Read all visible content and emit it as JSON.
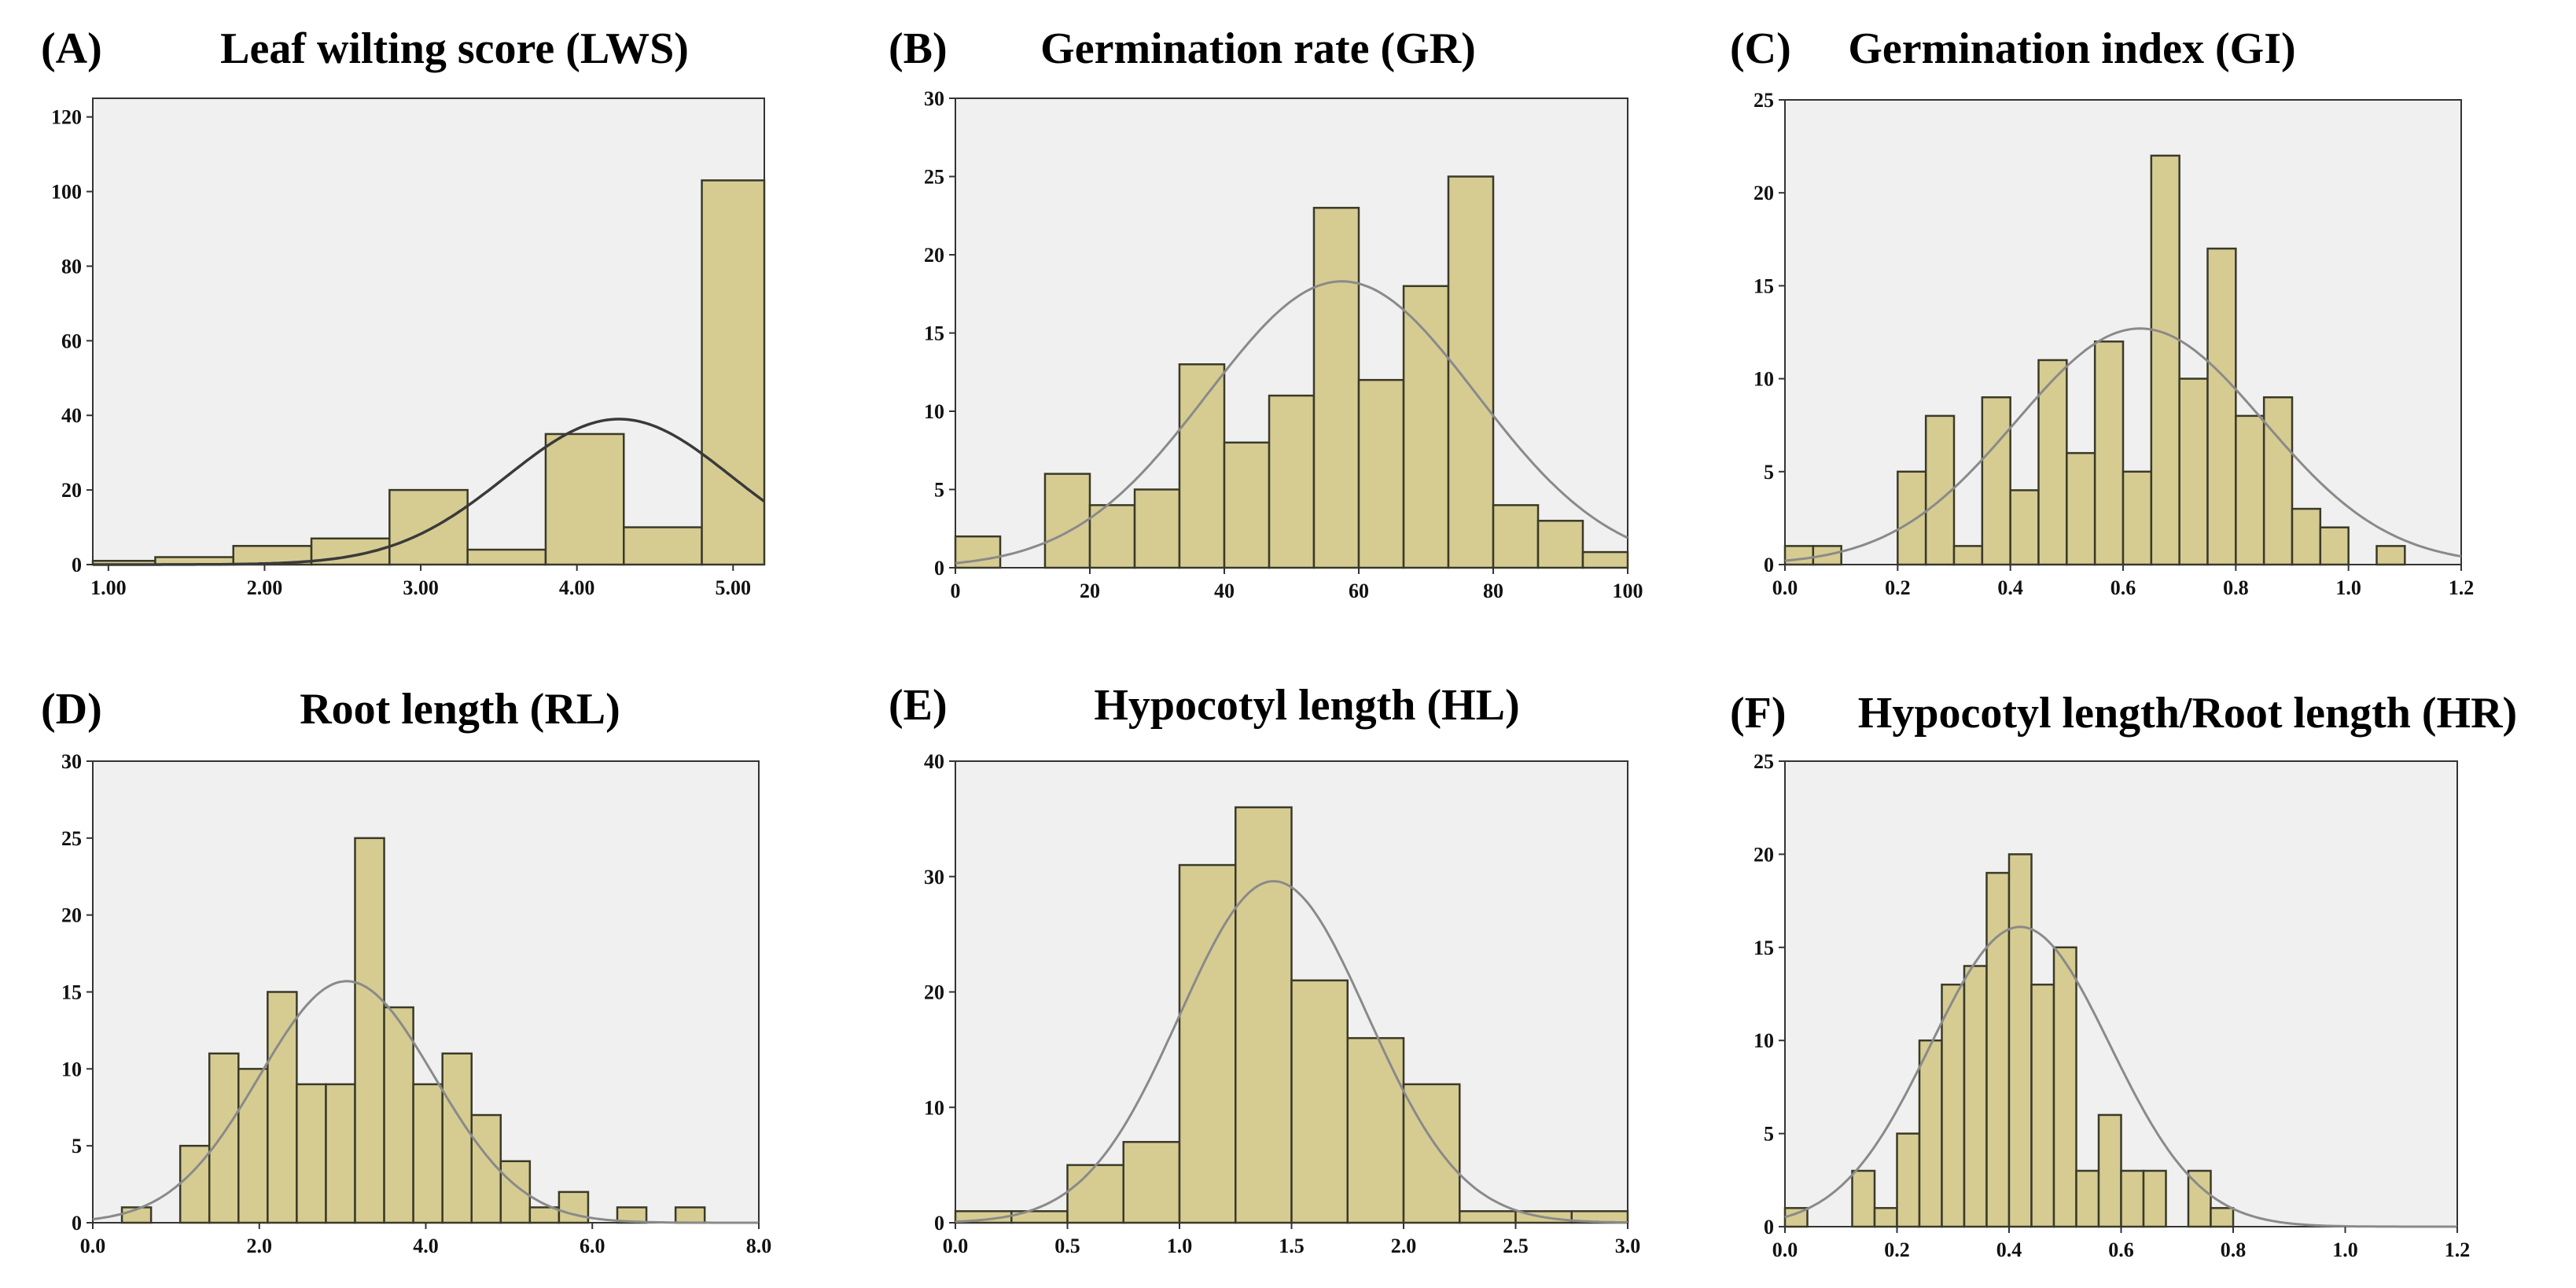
{
  "chart_data": [
    {
      "type": "bar",
      "panel": "(A)",
      "title": "Leaf wilting score (LWS)",
      "xlabel": "",
      "ylabel": "",
      "xlim": [
        0.9,
        5.2
      ],
      "ylim": [
        0,
        125
      ],
      "xticks": [
        1.0,
        2.0,
        3.0,
        4.0,
        5.0
      ],
      "xtick_labels": [
        "1.00",
        "2.00",
        "3.00",
        "4.00",
        "5.00"
      ],
      "yticks": [
        0,
        20,
        40,
        60,
        80,
        100,
        120
      ],
      "ytick_labels": [
        "0",
        "20",
        "40",
        "60",
        "80",
        "100",
        "120"
      ],
      "bins": [
        {
          "x0": 0.9,
          "x1": 1.3,
          "value": 1
        },
        {
          "x0": 1.3,
          "x1": 1.8,
          "value": 2
        },
        {
          "x0": 1.8,
          "x1": 2.3,
          "value": 5
        },
        {
          "x0": 2.3,
          "x1": 2.8,
          "value": 7
        },
        {
          "x0": 2.8,
          "x1": 3.3,
          "value": 20
        },
        {
          "x0": 3.3,
          "x1": 3.8,
          "value": 4
        },
        {
          "x0": 3.8,
          "x1": 4.3,
          "value": 35
        },
        {
          "x0": 4.3,
          "x1": 4.8,
          "value": 10
        },
        {
          "x0": 4.8,
          "x1": 5.2,
          "value": 103
        }
      ],
      "normal_curve": {
        "mean": 4.27,
        "sd": 0.72,
        "peak": 39
      }
    },
    {
      "type": "bar",
      "panel": "(B)",
      "title": "Germination rate (GR)",
      "xlabel": "",
      "ylabel": "",
      "xlim": [
        0,
        100
      ],
      "ylim": [
        0,
        30
      ],
      "xticks": [
        0,
        20,
        40,
        60,
        80,
        100
      ],
      "xtick_labels": [
        "0",
        "20",
        "40",
        "60",
        "80",
        "100"
      ],
      "yticks": [
        0,
        5,
        10,
        15,
        20,
        25,
        30
      ],
      "ytick_labels": [
        "0",
        "5",
        "10",
        "15",
        "20",
        "25",
        "30"
      ],
      "bins": [
        {
          "x0": 0,
          "x1": 6.67,
          "value": 2
        },
        {
          "x0": 13.33,
          "x1": 20,
          "value": 6
        },
        {
          "x0": 20,
          "x1": 26.67,
          "value": 4
        },
        {
          "x0": 26.67,
          "x1": 33.33,
          "value": 5
        },
        {
          "x0": 33.33,
          "x1": 40,
          "value": 13
        },
        {
          "x0": 40,
          "x1": 46.67,
          "value": 8
        },
        {
          "x0": 46.67,
          "x1": 53.33,
          "value": 11
        },
        {
          "x0": 53.33,
          "x1": 60,
          "value": 23
        },
        {
          "x0": 60,
          "x1": 66.67,
          "value": 12
        },
        {
          "x0": 66.67,
          "x1": 73.33,
          "value": 18
        },
        {
          "x0": 73.33,
          "x1": 80,
          "value": 25
        },
        {
          "x0": 80,
          "x1": 86.67,
          "value": 4
        },
        {
          "x0": 86.67,
          "x1": 93.33,
          "value": 3
        },
        {
          "x0": 93.33,
          "x1": 100,
          "value": 1
        }
      ],
      "normal_curve": {
        "mean": 57.5,
        "sd": 20,
        "peak": 18.3
      }
    },
    {
      "type": "bar",
      "panel": "(C)",
      "title": "Germination index (GI)",
      "xlabel": "",
      "ylabel": "",
      "xlim": [
        0,
        1.2
      ],
      "ylim": [
        0,
        25
      ],
      "xticks": [
        0.0,
        0.2,
        0.4,
        0.6,
        0.8,
        1.0,
        1.2
      ],
      "xtick_labels": [
        "0.0",
        "0.2",
        "0.4",
        "0.6",
        "0.8",
        "1.0",
        "1.2"
      ],
      "yticks": [
        0,
        5,
        10,
        15,
        20,
        25
      ],
      "ytick_labels": [
        "0",
        "5",
        "10",
        "15",
        "20",
        "25"
      ],
      "bins": [
        {
          "x0": 0.0,
          "x1": 0.05,
          "value": 1
        },
        {
          "x0": 0.05,
          "x1": 0.1,
          "value": 1
        },
        {
          "x0": 0.2,
          "x1": 0.25,
          "value": 5
        },
        {
          "x0": 0.25,
          "x1": 0.3,
          "value": 8
        },
        {
          "x0": 0.3,
          "x1": 0.35,
          "value": 1
        },
        {
          "x0": 0.35,
          "x1": 0.4,
          "value": 9
        },
        {
          "x0": 0.4,
          "x1": 0.45,
          "value": 4
        },
        {
          "x0": 0.45,
          "x1": 0.5,
          "value": 11
        },
        {
          "x0": 0.5,
          "x1": 0.55,
          "value": 6
        },
        {
          "x0": 0.55,
          "x1": 0.6,
          "value": 12
        },
        {
          "x0": 0.6,
          "x1": 0.65,
          "value": 5
        },
        {
          "x0": 0.65,
          "x1": 0.7,
          "value": 22
        },
        {
          "x0": 0.7,
          "x1": 0.75,
          "value": 10
        },
        {
          "x0": 0.75,
          "x1": 0.8,
          "value": 17
        },
        {
          "x0": 0.8,
          "x1": 0.85,
          "value": 8
        },
        {
          "x0": 0.85,
          "x1": 0.9,
          "value": 9
        },
        {
          "x0": 0.9,
          "x1": 0.95,
          "value": 3
        },
        {
          "x0": 0.95,
          "x1": 1.0,
          "value": 2
        },
        {
          "x0": 1.05,
          "x1": 1.1,
          "value": 1
        }
      ],
      "normal_curve": {
        "mean": 0.63,
        "sd": 0.22,
        "peak": 12.7
      }
    },
    {
      "type": "bar",
      "panel": "(D)",
      "title": "Root length (RL)",
      "xlabel": "",
      "ylabel": "",
      "xlim": [
        0,
        8
      ],
      "ylim": [
        0,
        30
      ],
      "xticks": [
        0,
        2,
        4,
        6,
        8
      ],
      "xtick_labels": [
        "0.0",
        "2.0",
        "4.0",
        "6.0",
        "8.0"
      ],
      "yticks": [
        0,
        5,
        10,
        15,
        20,
        25,
        30
      ],
      "ytick_labels": [
        "0",
        "5",
        "10",
        "15",
        "20",
        "25",
        "30"
      ],
      "bins": [
        {
          "x0": 0.35,
          "x1": 0.7,
          "value": 1
        },
        {
          "x0": 1.05,
          "x1": 1.4,
          "value": 5
        },
        {
          "x0": 1.4,
          "x1": 1.75,
          "value": 11
        },
        {
          "x0": 1.75,
          "x1": 2.1,
          "value": 10
        },
        {
          "x0": 2.1,
          "x1": 2.45,
          "value": 15
        },
        {
          "x0": 2.45,
          "x1": 2.8,
          "value": 9
        },
        {
          "x0": 2.8,
          "x1": 3.15,
          "value": 9
        },
        {
          "x0": 3.15,
          "x1": 3.5,
          "value": 25
        },
        {
          "x0": 3.5,
          "x1": 3.85,
          "value": 14
        },
        {
          "x0": 3.85,
          "x1": 4.2,
          "value": 9
        },
        {
          "x0": 4.2,
          "x1": 4.55,
          "value": 11
        },
        {
          "x0": 4.55,
          "x1": 4.9,
          "value": 7
        },
        {
          "x0": 4.9,
          "x1": 5.25,
          "value": 4
        },
        {
          "x0": 5.25,
          "x1": 5.6,
          "value": 1
        },
        {
          "x0": 5.6,
          "x1": 5.95,
          "value": 2
        },
        {
          "x0": 6.3,
          "x1": 6.65,
          "value": 1
        },
        {
          "x0": 7.0,
          "x1": 7.35,
          "value": 1
        }
      ],
      "normal_curve": {
        "mean": 3.05,
        "sd": 1.05,
        "peak": 15.7
      }
    },
    {
      "type": "bar",
      "panel": "(E)",
      "title": "Hypocotyl length (HL)",
      "xlabel": "",
      "ylabel": "",
      "xlim": [
        0,
        3
      ],
      "ylim": [
        0,
        40
      ],
      "xticks": [
        0.0,
        0.5,
        1.0,
        1.5,
        2.0,
        2.5,
        3.0
      ],
      "xtick_labels": [
        "0.0",
        "0.5",
        "1.0",
        "1.5",
        "2.0",
        "2.5",
        "3.0"
      ],
      "yticks": [
        0,
        10,
        20,
        30,
        40
      ],
      "ytick_labels": [
        "0",
        "10",
        "20",
        "30",
        "40"
      ],
      "bins": [
        {
          "x0": 0.0,
          "x1": 0.25,
          "value": 1
        },
        {
          "x0": 0.25,
          "x1": 0.5,
          "value": 1
        },
        {
          "x0": 0.5,
          "x1": 0.75,
          "value": 5
        },
        {
          "x0": 0.75,
          "x1": 1.0,
          "value": 7
        },
        {
          "x0": 1.0,
          "x1": 1.25,
          "value": 31
        },
        {
          "x0": 1.25,
          "x1": 1.5,
          "value": 36
        },
        {
          "x0": 1.5,
          "x1": 1.75,
          "value": 21
        },
        {
          "x0": 1.75,
          "x1": 2.0,
          "value": 16
        },
        {
          "x0": 2.0,
          "x1": 2.25,
          "value": 12
        },
        {
          "x0": 2.25,
          "x1": 2.5,
          "value": 1
        },
        {
          "x0": 2.5,
          "x1": 2.75,
          "value": 1
        },
        {
          "x0": 2.75,
          "x1": 3.0,
          "value": 1
        }
      ],
      "normal_curve": {
        "mean": 1.42,
        "sd": 0.42,
        "peak": 29.6
      }
    },
    {
      "type": "bar",
      "panel": "(F)",
      "title": "Hypocotyl length/Root length (HR)",
      "xlabel": "",
      "ylabel": "",
      "xlim": [
        0,
        1.2
      ],
      "ylim": [
        0,
        25
      ],
      "xticks": [
        0.0,
        0.2,
        0.4,
        0.6,
        0.8,
        1.0,
        1.2
      ],
      "xtick_labels": [
        "0.0",
        "0.2",
        "0.4",
        "0.6",
        "0.8",
        "1.0",
        "1.2"
      ],
      "yticks": [
        0,
        5,
        10,
        15,
        20,
        25
      ],
      "ytick_labels": [
        "0",
        "5",
        "10",
        "15",
        "20",
        "25"
      ],
      "bins": [
        {
          "x0": 0.0,
          "x1": 0.04,
          "value": 1
        },
        {
          "x0": 0.12,
          "x1": 0.16,
          "value": 3
        },
        {
          "x0": 0.16,
          "x1": 0.2,
          "value": 1
        },
        {
          "x0": 0.2,
          "x1": 0.24,
          "value": 5
        },
        {
          "x0": 0.24,
          "x1": 0.28,
          "value": 10
        },
        {
          "x0": 0.28,
          "x1": 0.32,
          "value": 13
        },
        {
          "x0": 0.32,
          "x1": 0.36,
          "value": 14
        },
        {
          "x0": 0.36,
          "x1": 0.4,
          "value": 19
        },
        {
          "x0": 0.4,
          "x1": 0.44,
          "value": 20
        },
        {
          "x0": 0.44,
          "x1": 0.48,
          "value": 13
        },
        {
          "x0": 0.48,
          "x1": 0.52,
          "value": 15
        },
        {
          "x0": 0.52,
          "x1": 0.56,
          "value": 3
        },
        {
          "x0": 0.56,
          "x1": 0.6,
          "value": 6
        },
        {
          "x0": 0.6,
          "x1": 0.64,
          "value": 3
        },
        {
          "x0": 0.64,
          "x1": 0.68,
          "value": 3
        },
        {
          "x0": 0.72,
          "x1": 0.76,
          "value": 3
        },
        {
          "x0": 0.76,
          "x1": 0.8,
          "value": 1
        }
      ],
      "normal_curve": {
        "mean": 0.42,
        "sd": 0.16,
        "peak": 16.1
      }
    }
  ]
}
